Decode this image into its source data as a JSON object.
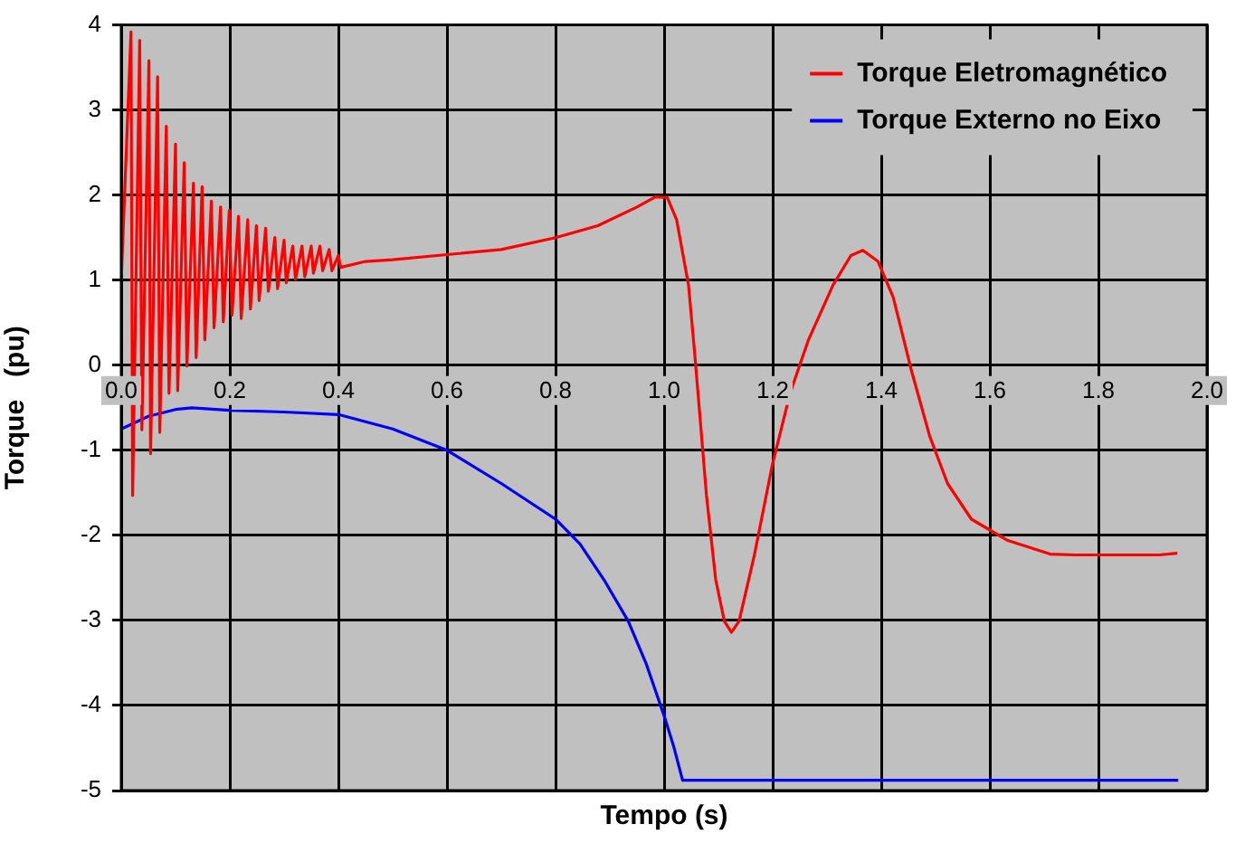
{
  "chart_data": {
    "type": "line",
    "xlabel": "Tempo (s)",
    "ylabel": "Torque   (pu)",
    "xlim": [
      0,
      2
    ],
    "xticks": [
      {
        "value": 0,
        "label": "0.0"
      },
      {
        "value": 0.2,
        "label": "0.2"
      },
      {
        "value": 0.4,
        "label": "0.4"
      },
      {
        "value": 0.6,
        "label": "0.6"
      },
      {
        "value": 0.8,
        "label": "0.8"
      },
      {
        "value": 1,
        "label": "1.0"
      },
      {
        "value": 1.2,
        "label": "1.2"
      },
      {
        "value": 1.4,
        "label": "1.4"
      },
      {
        "value": 1.6,
        "label": "1.6"
      },
      {
        "value": 1.8,
        "label": "1.8"
      },
      {
        "value": 2,
        "label": "2.0"
      }
    ],
    "ylim": [
      -5,
      4
    ],
    "yticks": [
      -5,
      -4,
      -3,
      -2,
      -1,
      0,
      1,
      2,
      3,
      4
    ],
    "grid": true,
    "legend": "top right",
    "marker": "none",
    "line_style": "solid",
    "series": [
      {
        "name": "Torque Eletromagnético",
        "color": "#ff0000",
        "x": [
          0,
          0.018,
          0.021,
          0.034,
          0.038,
          0.051,
          0.054,
          0.067,
          0.071,
          0.083,
          0.088,
          0.1,
          0.104,
          0.116,
          0.121,
          0.133,
          0.138,
          0.149,
          0.154,
          0.166,
          0.171,
          0.183,
          0.188,
          0.199,
          0.204,
          0.216,
          0.221,
          0.233,
          0.238,
          0.249,
          0.254,
          0.266,
          0.271,
          0.283,
          0.288,
          0.3,
          0.304,
          0.316,
          0.321,
          0.333,
          0.338,
          0.35,
          0.354,
          0.366,
          0.371,
          0.383,
          0.388,
          0.4,
          0.404,
          0.45,
          0.5,
          0.6,
          0.7,
          0.8,
          0.878,
          0.95,
          0.984,
          1.006,
          1.023,
          1.045,
          1.056,
          1.067,
          1.078,
          1.095,
          1.111,
          1.124,
          1.138,
          1.166,
          1.199,
          1.232,
          1.266,
          1.311,
          1.344,
          1.366,
          1.394,
          1.422,
          1.455,
          1.489,
          1.522,
          1.566,
          1.633,
          1.711,
          1.756,
          1.822,
          1.912,
          1.945
        ],
        "values": [
          1,
          3.92,
          -1.53,
          3.82,
          -0.76,
          3.58,
          -1.04,
          3.39,
          -0.79,
          2.81,
          -0.33,
          2.6,
          -0.3,
          2.38,
          -0.01,
          2.14,
          0.09,
          2.1,
          0.3,
          1.93,
          0.44,
          1.86,
          0.51,
          1.82,
          0.59,
          1.75,
          0.55,
          1.71,
          0.66,
          1.64,
          0.76,
          1.61,
          0.87,
          1.5,
          0.9,
          1.47,
          0.97,
          1.4,
          1.01,
          1.4,
          1.04,
          1.4,
          1.08,
          1.4,
          1.11,
          1.36,
          1.11,
          1.29,
          1.15,
          1.22,
          1.24,
          1.3,
          1.36,
          1.5,
          1.64,
          1.86,
          1.98,
          1.97,
          1.71,
          0.94,
          0.16,
          -0.68,
          -1.53,
          -2.52,
          -3.01,
          -3.14,
          -3.01,
          -2.24,
          -1.18,
          -0.33,
          0.3,
          0.94,
          1.29,
          1.35,
          1.22,
          0.8,
          -0.05,
          -0.83,
          -1.39,
          -1.81,
          -2.06,
          -2.22,
          -2.23,
          -2.23,
          -2.23,
          -2.21
        ]
      },
      {
        "name": "Torque Externo no Eixo",
        "color": "#0000ff",
        "x": [
          0,
          0.05,
          0.1,
          0.13,
          0.2,
          0.3,
          0.4,
          0.5,
          0.6,
          0.7,
          0.8,
          0.845,
          0.889,
          0.934,
          0.967,
          1.001,
          1.018,
          1.034,
          1.947
        ],
        "values": [
          -0.75,
          -0.6,
          -0.52,
          -0.5,
          -0.53,
          -0.55,
          -0.58,
          -0.75,
          -1,
          -1.39,
          -1.81,
          -2.1,
          -2.52,
          -3.01,
          -3.51,
          -4.14,
          -4.49,
          -4.88,
          -4.88
        ]
      }
    ]
  }
}
